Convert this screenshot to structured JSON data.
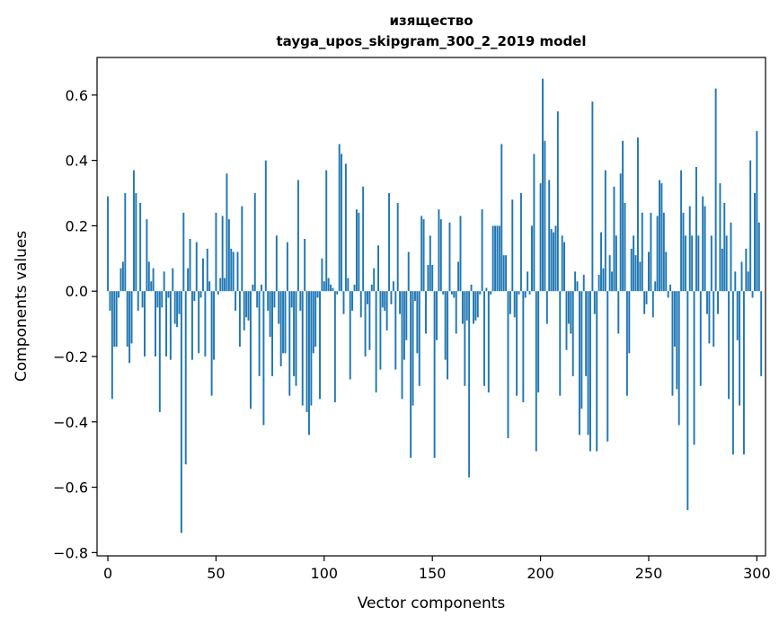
{
  "chart_data": {
    "type": "bar",
    "title": "изящество",
    "subtitle": "tayga_upos_skipgram_300_2_2019 model",
    "xlabel": "Vector components",
    "ylabel": "Components values",
    "xlim": [
      -5,
      304
    ],
    "ylim": [
      -0.81,
      0.715
    ],
    "xticks": [
      0,
      50,
      100,
      150,
      200,
      250,
      300
    ],
    "xtick_labels": [
      "0",
      "50",
      "100",
      "150",
      "200",
      "250",
      "300"
    ],
    "yticks": [
      -0.8,
      -0.6,
      -0.4,
      -0.2,
      0.0,
      0.2,
      0.4,
      0.6
    ],
    "ytick_labels": [
      "−0.8",
      "−0.6",
      "−0.4",
      "−0.2",
      "0.0",
      "0.2",
      "0.4",
      "0.6"
    ],
    "bar_color": "#1f77b4",
    "values": [
      0.29,
      -0.06,
      -0.33,
      -0.17,
      -0.17,
      -0.02,
      0.07,
      0.09,
      0.3,
      -0.17,
      -0.22,
      -0.16,
      0.37,
      0.3,
      -0.06,
      0.27,
      -0.05,
      -0.2,
      0.22,
      0.09,
      0.03,
      0.07,
      -0.2,
      -0.05,
      -0.37,
      -0.05,
      0.06,
      -0.2,
      -0.02,
      -0.21,
      0.07,
      -0.1,
      -0.11,
      -0.07,
      -0.74,
      0.24,
      -0.53,
      0.07,
      0.16,
      -0.21,
      -0.03,
      0.15,
      -0.19,
      -0.02,
      0.1,
      -0.2,
      0.13,
      0.03,
      -0.32,
      -0.21,
      0.24,
      -0.01,
      0.04,
      0.23,
      0.04,
      0.36,
      0.22,
      0.13,
      0.12,
      -0.06,
      0.12,
      -0.17,
      0.26,
      -0.12,
      -0.08,
      -0.09,
      -0.36,
      0.02,
      0.3,
      -0.05,
      -0.26,
      0.02,
      -0.41,
      0.4,
      -0.06,
      -0.14,
      -0.26,
      -0.05,
      0.17,
      -0.1,
      -0.23,
      -0.19,
      -0.19,
      0.15,
      -0.32,
      -0.05,
      -0.26,
      -0.29,
      0.34,
      -0.06,
      -0.35,
      0.16,
      -0.37,
      -0.44,
      -0.35,
      -0.19,
      -0.17,
      -0.02,
      -0.33,
      0.1,
      0.03,
      0.37,
      0.04,
      0.02,
      0.01,
      -0.34,
      -0.01,
      0.45,
      0.42,
      -0.07,
      0.39,
      0.04,
      -0.27,
      -0.06,
      0.02,
      0.25,
      0.24,
      -0.08,
      0.32,
      -0.2,
      -0.04,
      -0.18,
      0.02,
      0.07,
      -0.31,
      0.14,
      -0.24,
      -0.05,
      -0.06,
      -0.12,
      0.3,
      -0.04,
      0.03,
      -0.24,
      0.27,
      -0.07,
      -0.33,
      -0.21,
      -0.15,
      0.12,
      -0.51,
      -0.35,
      -0.03,
      -0.19,
      -0.29,
      0.23,
      0.22,
      -0.13,
      0.08,
      0.17,
      0.08,
      -0.51,
      -0.15,
      0.25,
      0.22,
      -0.01,
      -0.21,
      -0.27,
      0.21,
      -0.01,
      -0.02,
      -0.13,
      0.09,
      0.23,
      -0.1,
      -0.29,
      -0.09,
      -0.57,
      0.02,
      -0.1,
      -0.09,
      -0.08,
      -0.01,
      0.25,
      -0.29,
      0.01,
      -0.31,
      -0.01,
      0.2,
      0.2,
      0.2,
      0.2,
      0.45,
      0.11,
      0.11,
      -0.45,
      -0.07,
      0.28,
      -0.08,
      -0.32,
      -0.01,
      0.3,
      -0.34,
      -0.02,
      0.06,
      -0.01,
      0.2,
      0.42,
      -0.49,
      -0.31,
      0.33,
      0.65,
      0.46,
      -0.1,
      0.34,
      0.19,
      0.18,
      0.2,
      0.55,
      -0.32,
      0.17,
      0.15,
      -0.18,
      -0.1,
      -0.13,
      -0.26,
      0.06,
      0.03,
      -0.44,
      -0.36,
      0.05,
      -0.26,
      -0.44,
      -0.49,
      0.58,
      -0.07,
      -0.49,
      0.05,
      0.18,
      0.07,
      0.37,
      -0.46,
      0.11,
      0.06,
      0.32,
      0.17,
      -0.13,
      0.36,
      0.46,
      0.27,
      -0.32,
      -0.19,
      0.13,
      0.17,
      0.11,
      0.47,
      0.09,
      0.24,
      -0.07,
      -0.04,
      0.12,
      0.24,
      -0.08,
      0.03,
      0.23,
      0.34,
      0.33,
      0.24,
      0.12,
      -0.02,
      0.02,
      -0.32,
      -0.17,
      -0.3,
      -0.41,
      0.37,
      0.24,
      0.17,
      -0.67,
      0.26,
      0.17,
      -0.47,
      0.38,
      0.17,
      -0.29,
      0.29,
      0.26,
      -0.07,
      -0.16,
      0.17,
      -0.17,
      0.62,
      -0.07,
      0.33,
      0.13,
      0.27,
      0.17,
      -0.33,
      0.21,
      -0.5,
      0.06,
      -0.15,
      -0.35,
      0.09,
      -0.5,
      0.13,
      0.06,
      0.4,
      -0.02,
      0.3,
      0.49,
      0.21,
      -0.26
    ]
  }
}
